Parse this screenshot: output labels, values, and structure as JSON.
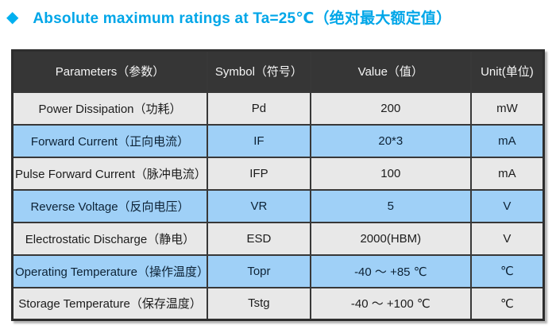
{
  "title": {
    "bullet_icon": "diamond-icon",
    "text": "Absolute maximum ratings at Ta=25℃（绝对最大额定值）"
  },
  "colors": {
    "title_accent": "#00a6e8",
    "diamond": "#00b0f0",
    "header_bg": "#363636",
    "header_text": "#f5f5f5",
    "row_gray_bg": "#e8e8e8",
    "row_blue_bg": "#9fd0f7",
    "border": "#383838"
  },
  "table": {
    "headers": [
      "Parameters（参数）",
      "Symbol（符号）",
      "Value（值）",
      "Unit(单位)"
    ],
    "rows": [
      {
        "param": "Power Dissipation（功耗）",
        "symbol": "Pd",
        "value": "200",
        "unit": "mW"
      },
      {
        "param": "Forward Current（正向电流）",
        "symbol": "IF",
        "value": "20*3",
        "unit": "mA"
      },
      {
        "param": "Pulse Forward Current（脉冲电流）",
        "symbol": "IFP",
        "value": "100",
        "unit": "mA"
      },
      {
        "param": "Reverse Voltage（反向电压）",
        "symbol": "VR",
        "value": "5",
        "unit": "V"
      },
      {
        "param": "Electrostatic Discharge（静电）",
        "symbol": "ESD",
        "value": "2000(HBM)",
        "unit": "V"
      },
      {
        "param": "Operating Temperature（操作温度）",
        "symbol": "Topr",
        "value": "-40 ～ +85 ℃",
        "unit": "℃"
      },
      {
        "param": "Storage Temperature（保存温度）",
        "symbol": "Tstg",
        "value": "-40 ～ +100 ℃",
        "unit": "℃"
      }
    ]
  }
}
